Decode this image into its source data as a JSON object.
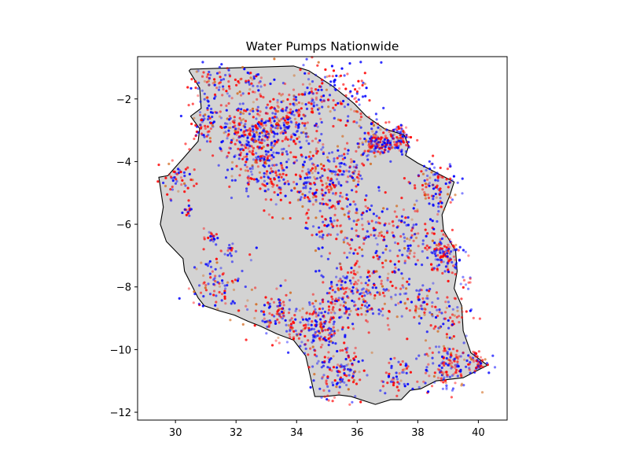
{
  "chart_data": {
    "type": "scatter",
    "title": "Water Pumps Nationwide",
    "xlabel": "",
    "ylabel": "",
    "xlim": [
      28.75,
      40.95
    ],
    "ylim": [
      -12.25,
      -0.65
    ],
    "xticks": [
      30,
      32,
      34,
      36,
      38,
      40
    ],
    "yticks": [
      -2,
      -4,
      -6,
      -8,
      -10,
      -12
    ],
    "grid": false,
    "legend": "none",
    "basemap": {
      "fill": "#d3d3d3",
      "edge": "#000000",
      "boundary": [
        [
          30.5,
          -1.05
        ],
        [
          33.9,
          -0.95
        ],
        [
          34.4,
          -1.1
        ],
        [
          35.2,
          -1.6
        ],
        [
          35.9,
          -2.15
        ],
        [
          36.3,
          -2.55
        ],
        [
          36.9,
          -2.95
        ],
        [
          37.55,
          -3.15
        ],
        [
          37.7,
          -3.5
        ],
        [
          37.6,
          -3.8
        ],
        [
          38.0,
          -4.05
        ],
        [
          39.2,
          -4.65
        ],
        [
          39.05,
          -5.1
        ],
        [
          38.8,
          -5.7
        ],
        [
          38.85,
          -6.2
        ],
        [
          39.25,
          -6.85
        ],
        [
          39.3,
          -7.5
        ],
        [
          39.2,
          -8.05
        ],
        [
          39.45,
          -8.6
        ],
        [
          39.5,
          -9.4
        ],
        [
          39.75,
          -10.1
        ],
        [
          40.3,
          -10.5
        ],
        [
          39.5,
          -10.9
        ],
        [
          38.6,
          -11.0
        ],
        [
          38.1,
          -11.25
        ],
        [
          37.75,
          -11.3
        ],
        [
          37.45,
          -11.6
        ],
        [
          37.1,
          -11.6
        ],
        [
          36.6,
          -11.75
        ],
        [
          35.8,
          -11.5
        ],
        [
          35.4,
          -11.45
        ],
        [
          34.95,
          -11.5
        ],
        [
          34.6,
          -11.5
        ],
        [
          34.5,
          -11.05
        ],
        [
          34.3,
          -10.2
        ],
        [
          33.9,
          -9.7
        ],
        [
          33.35,
          -9.5
        ],
        [
          32.8,
          -9.25
        ],
        [
          32.4,
          -9.1
        ],
        [
          31.95,
          -8.9
        ],
        [
          31.4,
          -8.75
        ],
        [
          30.95,
          -8.6
        ],
        [
          30.75,
          -8.35
        ],
        [
          30.3,
          -7.5
        ],
        [
          30.25,
          -7.1
        ],
        [
          29.7,
          -6.55
        ],
        [
          29.5,
          -6.0
        ],
        [
          29.6,
          -5.45
        ],
        [
          29.45,
          -4.5
        ],
        [
          29.75,
          -4.45
        ],
        [
          30.3,
          -3.85
        ],
        [
          30.75,
          -3.35
        ],
        [
          30.8,
          -2.95
        ],
        [
          30.5,
          -2.55
        ],
        [
          30.85,
          -2.3
        ],
        [
          30.8,
          -1.65
        ],
        [
          30.45,
          -1.1
        ]
      ]
    },
    "series": [
      {
        "color": "#0000ff"
      },
      {
        "color": "#ff0000"
      },
      {
        "color": "#d2691e"
      }
    ],
    "clusters": [
      {
        "lon": 31.2,
        "lat": -1.6,
        "s": 0.4,
        "n": 80
      },
      {
        "lon": 32.5,
        "lat": -1.5,
        "s": 0.3,
        "n": 40
      },
      {
        "lon": 33.7,
        "lat": -2.1,
        "s": 0.35,
        "n": 50
      },
      {
        "lon": 34.8,
        "lat": -1.8,
        "s": 0.6,
        "n": 110
      },
      {
        "lon": 30.9,
        "lat": -2.8,
        "s": 0.25,
        "n": 50
      },
      {
        "lon": 31.9,
        "lat": -2.9,
        "s": 0.4,
        "n": 90
      },
      {
        "lon": 32.9,
        "lat": -2.8,
        "s": 0.4,
        "n": 120
      },
      {
        "lon": 33.8,
        "lat": -3.0,
        "s": 0.5,
        "n": 140
      },
      {
        "lon": 32.5,
        "lat": -3.7,
        "s": 0.45,
        "n": 120
      },
      {
        "lon": 33.1,
        "lat": -4.5,
        "s": 0.5,
        "n": 110
      },
      {
        "lon": 34.6,
        "lat": -4.6,
        "s": 0.5,
        "n": 170
      },
      {
        "lon": 35.7,
        "lat": -4.2,
        "s": 0.35,
        "n": 60
      },
      {
        "lon": 36.6,
        "lat": -3.4,
        "s": 0.25,
        "n": 120
      },
      {
        "lon": 37.3,
        "lat": -3.3,
        "s": 0.25,
        "n": 100
      },
      {
        "lon": 38.6,
        "lat": -4.8,
        "s": 0.35,
        "n": 100
      },
      {
        "lon": 30.1,
        "lat": -4.6,
        "s": 0.3,
        "n": 50
      },
      {
        "lon": 30.4,
        "lat": -5.6,
        "s": 0.1,
        "n": 15
      },
      {
        "lon": 31.1,
        "lat": -6.4,
        "s": 0.15,
        "n": 20
      },
      {
        "lon": 31.8,
        "lat": -6.7,
        "s": 0.08,
        "n": 8
      },
      {
        "lon": 35.7,
        "lat": -6.0,
        "s": 0.7,
        "n": 180
      },
      {
        "lon": 37.6,
        "lat": -6.4,
        "s": 0.6,
        "n": 120
      },
      {
        "lon": 38.9,
        "lat": -7.0,
        "s": 0.3,
        "n": 120
      },
      {
        "lon": 39.6,
        "lat": -7.9,
        "s": 0.1,
        "n": 10
      },
      {
        "lon": 31.5,
        "lat": -7.8,
        "s": 0.5,
        "n": 100
      },
      {
        "lon": 33.3,
        "lat": -8.9,
        "s": 0.4,
        "n": 90
      },
      {
        "lon": 34.6,
        "lat": -9.3,
        "s": 0.45,
        "n": 180
      },
      {
        "lon": 35.7,
        "lat": -8.2,
        "s": 0.5,
        "n": 140
      },
      {
        "lon": 36.7,
        "lat": -8.1,
        "s": 0.5,
        "n": 80
      },
      {
        "lon": 38.1,
        "lat": -8.5,
        "s": 0.4,
        "n": 60
      },
      {
        "lon": 35.4,
        "lat": -10.7,
        "s": 0.45,
        "n": 130
      },
      {
        "lon": 37.2,
        "lat": -10.9,
        "s": 0.3,
        "n": 50
      },
      {
        "lon": 39.0,
        "lat": -10.5,
        "s": 0.4,
        "n": 140
      },
      {
        "lon": 40.0,
        "lat": -10.4,
        "s": 0.2,
        "n": 50
      },
      {
        "lon": 39.0,
        "lat": -9.0,
        "s": 0.4,
        "n": 60
      },
      {
        "lon": 36.0,
        "lat": -2.2,
        "s": 0.5,
        "n": 60
      }
    ]
  }
}
